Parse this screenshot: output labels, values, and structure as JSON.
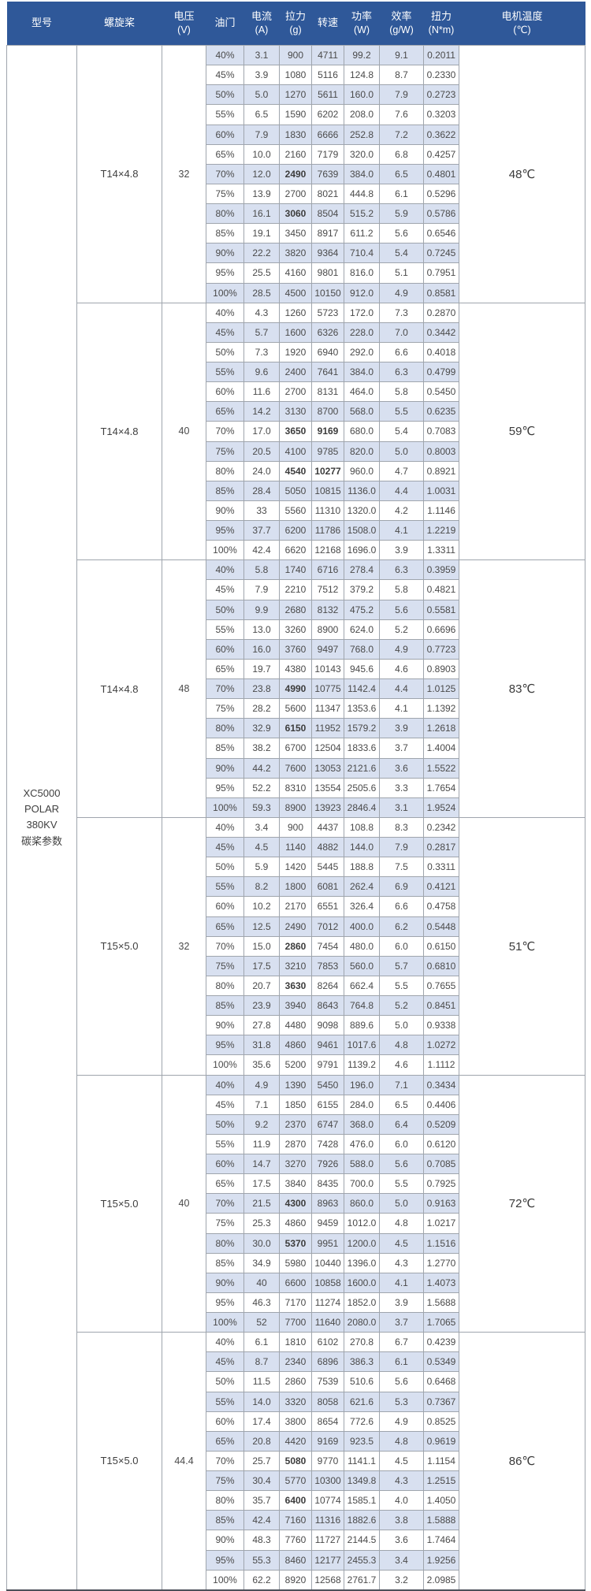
{
  "colors": {
    "header_bg": "#2f5899",
    "header_text": "#ffffff",
    "row_shaded": "#d8e0f0",
    "row_plain": "#ffffff",
    "grid_border": "#9fa5ad",
    "bottom_border": "#4b5059",
    "body_text": "#4a4a4a"
  },
  "table": {
    "headers": [
      {
        "key": "model",
        "line1": "型号",
        "line2": ""
      },
      {
        "key": "propeller",
        "line1": "螺旋桨",
        "line2": ""
      },
      {
        "key": "voltage",
        "line1": "电压",
        "line2": "(V)"
      },
      {
        "key": "throttle",
        "line1": "油门",
        "line2": ""
      },
      {
        "key": "current",
        "line1": "电流",
        "line2": "(A)"
      },
      {
        "key": "thrust",
        "line1": "拉力",
        "line2": "(g)"
      },
      {
        "key": "rpm",
        "line1": "转速",
        "line2": ""
      },
      {
        "key": "power",
        "line1": "功率",
        "line2": "(W)"
      },
      {
        "key": "efficiency",
        "line1": "效率",
        "line2": "(g/W)"
      },
      {
        "key": "torque",
        "line1": "扭力",
        "line2": "(N*m)"
      },
      {
        "key": "temperature",
        "line1": "电机温度",
        "line2": "(℃)"
      }
    ],
    "model_lines": [
      "XC5000",
      "POLAR",
      "380KV",
      "碳桨参数"
    ],
    "row_value_keys": [
      "throttle",
      "current",
      "thrust",
      "rpm",
      "power",
      "efficiency",
      "torque"
    ],
    "sections": [
      {
        "propeller": "T14×4.8",
        "voltage": "32",
        "temperature": "48℃",
        "rows": [
          [
            "40%",
            "3.1",
            "900",
            "4711",
            "99.2",
            "9.1",
            "0.2011"
          ],
          [
            "45%",
            "3.9",
            "1080",
            "5116",
            "124.8",
            "8.7",
            "0.2330"
          ],
          [
            "50%",
            "5.0",
            "1270",
            "5611",
            "160.0",
            "7.9",
            "0.2723"
          ],
          [
            "55%",
            "6.5",
            "1590",
            "6202",
            "208.0",
            "7.6",
            "0.3203"
          ],
          [
            "60%",
            "7.9",
            "1830",
            "6666",
            "252.8",
            "7.2",
            "0.3622"
          ],
          [
            "65%",
            "10.0",
            "2160",
            "7179",
            "320.0",
            "6.8",
            "0.4257"
          ],
          [
            "70%",
            "12.0",
            "2490",
            "7639",
            "384.0",
            "6.5",
            "0.4801"
          ],
          [
            "75%",
            "13.9",
            "2700",
            "8021",
            "444.8",
            "6.1",
            "0.5296"
          ],
          [
            "80%",
            "16.1",
            "3060",
            "8504",
            "515.2",
            "5.9",
            "0.5786"
          ],
          [
            "85%",
            "19.1",
            "3450",
            "8917",
            "611.2",
            "5.6",
            "0.6546"
          ],
          [
            "90%",
            "22.2",
            "3820",
            "9364",
            "710.4",
            "5.4",
            "0.7245"
          ],
          [
            "95%",
            "25.5",
            "4160",
            "9801",
            "816.0",
            "5.1",
            "0.7951"
          ],
          [
            "100%",
            "28.5",
            "4500",
            "10150",
            "912.0",
            "4.9",
            "0.8581"
          ]
        ]
      },
      {
        "propeller": "T14×4.8",
        "voltage": "40",
        "temperature": "59℃",
        "rows": [
          [
            "40%",
            "4.3",
            "1260",
            "5723",
            "172.0",
            "7.3",
            "0.2870"
          ],
          [
            "45%",
            "5.7",
            "1600",
            "6326",
            "228.0",
            "7.0",
            "0.3442"
          ],
          [
            "50%",
            "7.3",
            "1920",
            "6940",
            "292.0",
            "6.6",
            "0.4018"
          ],
          [
            "55%",
            "9.6",
            "2400",
            "7641",
            "384.0",
            "6.3",
            "0.4799"
          ],
          [
            "60%",
            "11.6",
            "2700",
            "8131",
            "464.0",
            "5.8",
            "0.5450"
          ],
          [
            "65%",
            "14.2",
            "3130",
            "8700",
            "568.0",
            "5.5",
            "0.6235"
          ],
          [
            "70%",
            "17.0",
            "3650",
            "9169",
            "680.0",
            "5.4",
            "0.7083"
          ],
          [
            "75%",
            "20.5",
            "4100",
            "9785",
            "820.0",
            "5.0",
            "0.8003"
          ],
          [
            "80%",
            "24.0",
            "4540",
            "10277",
            "960.0",
            "4.7",
            "0.8921"
          ],
          [
            "85%",
            "28.4",
            "5050",
            "10815",
            "1136.0",
            "4.4",
            "1.0031"
          ],
          [
            "90%",
            "33",
            "5560",
            "11310",
            "1320.0",
            "4.2",
            "1.1146"
          ],
          [
            "95%",
            "37.7",
            "6200",
            "11786",
            "1508.0",
            "4.1",
            "1.2219"
          ],
          [
            "100%",
            "42.4",
            "6620",
            "12168",
            "1696.0",
            "3.9",
            "1.3311"
          ]
        ]
      },
      {
        "propeller": "T14×4.8",
        "voltage": "48",
        "temperature": "83℃",
        "rows": [
          [
            "40%",
            "5.8",
            "1740",
            "6716",
            "278.4",
            "6.3",
            "0.3959"
          ],
          [
            "45%",
            "7.9",
            "2210",
            "7512",
            "379.2",
            "5.8",
            "0.4821"
          ],
          [
            "50%",
            "9.9",
            "2680",
            "8132",
            "475.2",
            "5.6",
            "0.5581"
          ],
          [
            "55%",
            "13.0",
            "3260",
            "8900",
            "624.0",
            "5.2",
            "0.6696"
          ],
          [
            "60%",
            "16.0",
            "3760",
            "9497",
            "768.0",
            "4.9",
            "0.7723"
          ],
          [
            "65%",
            "19.7",
            "4380",
            "10143",
            "945.6",
            "4.6",
            "0.8903"
          ],
          [
            "70%",
            "23.8",
            "4990",
            "10775",
            "1142.4",
            "4.4",
            "1.0125"
          ],
          [
            "75%",
            "28.2",
            "5600",
            "11347",
            "1353.6",
            "4.1",
            "1.1392"
          ],
          [
            "80%",
            "32.9",
            "6150",
            "11952",
            "1579.2",
            "3.9",
            "1.2618"
          ],
          [
            "85%",
            "38.2",
            "6700",
            "12504",
            "1833.6",
            "3.7",
            "1.4004"
          ],
          [
            "90%",
            "44.2",
            "7600",
            "13053",
            "2121.6",
            "3.6",
            "1.5522"
          ],
          [
            "95%",
            "52.2",
            "8310",
            "13554",
            "2505.6",
            "3.3",
            "1.7654"
          ],
          [
            "100%",
            "59.3",
            "8900",
            "13923",
            "2846.4",
            "3.1",
            "1.9524"
          ]
        ]
      },
      {
        "propeller": "T15×5.0",
        "voltage": "32",
        "temperature": "51℃",
        "rows": [
          [
            "40%",
            "3.4",
            "900",
            "4437",
            "108.8",
            "8.3",
            "0.2342"
          ],
          [
            "45%",
            "4.5",
            "1140",
            "4882",
            "144.0",
            "7.9",
            "0.2817"
          ],
          [
            "50%",
            "5.9",
            "1420",
            "5445",
            "188.8",
            "7.5",
            "0.3311"
          ],
          [
            "55%",
            "8.2",
            "1800",
            "6081",
            "262.4",
            "6.9",
            "0.4121"
          ],
          [
            "60%",
            "10.2",
            "2170",
            "6551",
            "326.4",
            "6.6",
            "0.4758"
          ],
          [
            "65%",
            "12.5",
            "2490",
            "7012",
            "400.0",
            "6.2",
            "0.5448"
          ],
          [
            "70%",
            "15.0",
            "2860",
            "7454",
            "480.0",
            "6.0",
            "0.6150"
          ],
          [
            "75%",
            "17.5",
            "3210",
            "7853",
            "560.0",
            "5.7",
            "0.6810"
          ],
          [
            "80%",
            "20.7",
            "3630",
            "8264",
            "662.4",
            "5.5",
            "0.7655"
          ],
          [
            "85%",
            "23.9",
            "3940",
            "8643",
            "764.8",
            "5.2",
            "0.8451"
          ],
          [
            "90%",
            "27.8",
            "4480",
            "9098",
            "889.6",
            "5.0",
            "0.9338"
          ],
          [
            "95%",
            "31.8",
            "4860",
            "9461",
            "1017.6",
            "4.8",
            "1.0272"
          ],
          [
            "100%",
            "35.6",
            "5200",
            "9791",
            "1139.2",
            "4.6",
            "1.1112"
          ]
        ]
      },
      {
        "propeller": "T15×5.0",
        "voltage": "40",
        "temperature": "72℃",
        "rows": [
          [
            "40%",
            "4.9",
            "1390",
            "5450",
            "196.0",
            "7.1",
            "0.3434"
          ],
          [
            "45%",
            "7.1",
            "1850",
            "6155",
            "284.0",
            "6.5",
            "0.4406"
          ],
          [
            "50%",
            "9.2",
            "2370",
            "6747",
            "368.0",
            "6.4",
            "0.5209"
          ],
          [
            "55%",
            "11.9",
            "2870",
            "7428",
            "476.0",
            "6.0",
            "0.6120"
          ],
          [
            "60%",
            "14.7",
            "3270",
            "7926",
            "588.0",
            "5.6",
            "0.7085"
          ],
          [
            "65%",
            "17.5",
            "3840",
            "8435",
            "700.0",
            "5.5",
            "0.7925"
          ],
          [
            "70%",
            "21.5",
            "4300",
            "8963",
            "860.0",
            "5.0",
            "0.9163"
          ],
          [
            "75%",
            "25.3",
            "4860",
            "9459",
            "1012.0",
            "4.8",
            "1.0217"
          ],
          [
            "80%",
            "30.0",
            "5370",
            "9951",
            "1200.0",
            "4.5",
            "1.1516"
          ],
          [
            "85%",
            "34.9",
            "5980",
            "10440",
            "1396.0",
            "4.3",
            "1.2770"
          ],
          [
            "90%",
            "40",
            "6600",
            "10858",
            "1600.0",
            "4.1",
            "1.4073"
          ],
          [
            "95%",
            "46.3",
            "7170",
            "11274",
            "1852.0",
            "3.9",
            "1.5688"
          ],
          [
            "100%",
            "52",
            "7700",
            "11640",
            "2080.0",
            "3.7",
            "1.7065"
          ]
        ]
      },
      {
        "propeller": "T15×5.0",
        "voltage": "44.4",
        "temperature": "86℃",
        "rows": [
          [
            "40%",
            "6.1",
            "1810",
            "6102",
            "270.8",
            "6.7",
            "0.4239"
          ],
          [
            "45%",
            "8.7",
            "2340",
            "6896",
            "386.3",
            "6.1",
            "0.5349"
          ],
          [
            "50%",
            "11.5",
            "2860",
            "7539",
            "510.6",
            "5.6",
            "0.6468"
          ],
          [
            "55%",
            "14.0",
            "3320",
            "8058",
            "621.6",
            "5.3",
            "0.7367"
          ],
          [
            "60%",
            "17.4",
            "3800",
            "8654",
            "772.6",
            "4.9",
            "0.8525"
          ],
          [
            "65%",
            "20.8",
            "4420",
            "9169",
            "923.5",
            "4.8",
            "0.9619"
          ],
          [
            "70%",
            "25.7",
            "5080",
            "9770",
            "1141.1",
            "4.5",
            "1.1154"
          ],
          [
            "75%",
            "30.4",
            "5770",
            "10300",
            "1349.8",
            "4.3",
            "1.2515"
          ],
          [
            "80%",
            "35.7",
            "6400",
            "10774",
            "1585.1",
            "4.0",
            "1.4050"
          ],
          [
            "85%",
            "42.4",
            "7160",
            "11316",
            "1882.6",
            "3.8",
            "1.5888"
          ],
          [
            "90%",
            "48.3",
            "7760",
            "11727",
            "2144.5",
            "3.6",
            "1.7464"
          ],
          [
            "95%",
            "55.3",
            "8460",
            "12177",
            "2455.3",
            "3.4",
            "1.9256"
          ],
          [
            "100%",
            "62.2",
            "8920",
            "12568",
            "2761.7",
            "3.2",
            "2.0985"
          ]
        ]
      }
    ],
    "bold_cells": [
      [
        0,
        6,
        2
      ],
      [
        0,
        8,
        2
      ],
      [
        1,
        6,
        2
      ],
      [
        1,
        6,
        3
      ],
      [
        1,
        8,
        2
      ],
      [
        1,
        8,
        3
      ],
      [
        2,
        6,
        2
      ],
      [
        2,
        8,
        2
      ],
      [
        3,
        6,
        2
      ],
      [
        3,
        8,
        2
      ],
      [
        4,
        6,
        2
      ],
      [
        4,
        8,
        2
      ],
      [
        5,
        6,
        2
      ],
      [
        5,
        8,
        2
      ]
    ]
  }
}
